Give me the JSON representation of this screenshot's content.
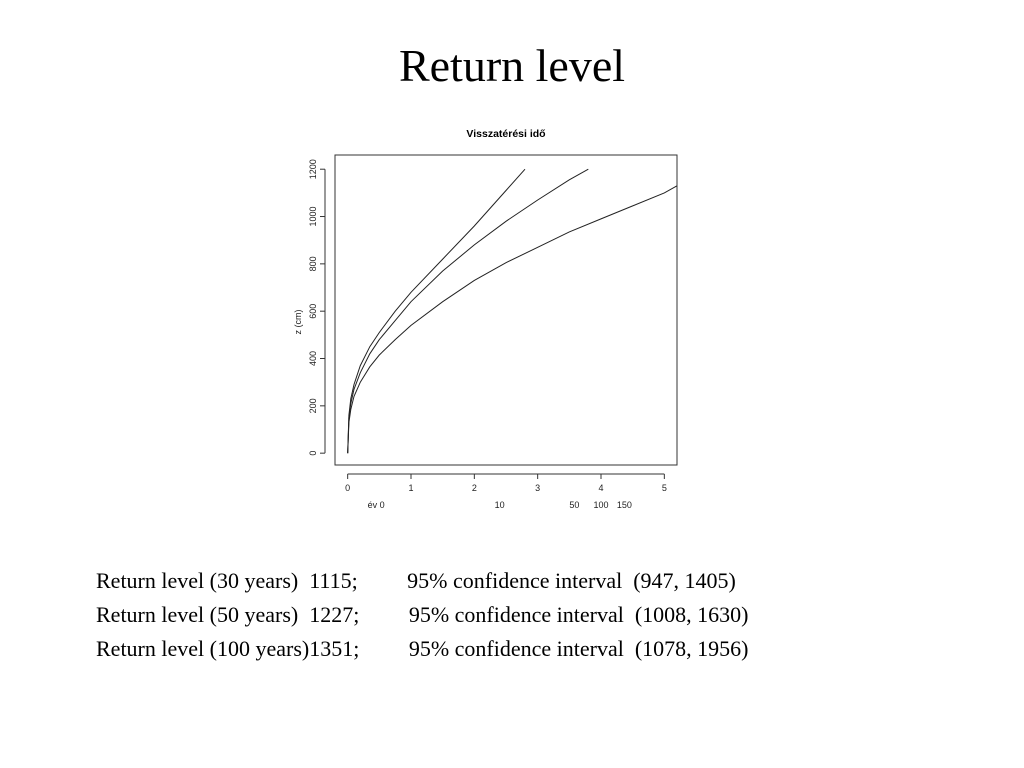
{
  "slide": {
    "title": "Return level"
  },
  "stats": [
    {
      "text": "Return level (30 years)  1115;         95% confidence interval  (947, 1405)"
    },
    {
      "text": "Return level (50 years)  1227;         95% confidence interval  (1008, 1630)"
    },
    {
      "text": "Return level (100 years)1351;         95% confidence interval  (1078, 1956)"
    }
  ],
  "chart_data": {
    "type": "line",
    "title": "Visszatérési idő",
    "ylabel": "z (cm)",
    "xlim": [
      -0.2,
      5.2
    ],
    "ylim": [
      -50,
      1260
    ],
    "xticks": [
      0,
      1,
      2,
      3,
      4,
      5
    ],
    "yticks": [
      0,
      200,
      400,
      600,
      800,
      1000,
      1200
    ],
    "secondary_axis_labels": [
      {
        "text": "év 0",
        "at": 0.45
      },
      {
        "text": "10",
        "at": 2.4
      },
      {
        "text": "50",
        "at": 3.58
      },
      {
        "text": "100",
        "at": 4.0
      },
      {
        "text": "150",
        "at": 4.37
      }
    ],
    "series": [
      {
        "values_x": [
          0,
          0.02,
          0.05,
          0.1,
          0.2,
          0.35,
          0.5,
          0.75,
          1.0,
          1.5,
          2.0,
          2.5,
          3.0,
          3.5,
          4.0,
          4.5,
          5.0,
          5.2
        ],
        "values_y": [
          0,
          130,
          185,
          240,
          300,
          365,
          415,
          480,
          540,
          640,
          730,
          805,
          870,
          935,
          990,
          1045,
          1100,
          1130
        ]
      },
      {
        "values_x": [
          0,
          0.02,
          0.05,
          0.1,
          0.2,
          0.35,
          0.5,
          0.75,
          1.0,
          1.5,
          2.0,
          2.5,
          3.0,
          3.5,
          3.8
        ],
        "values_y": [
          0,
          150,
          210,
          270,
          340,
          420,
          480,
          560,
          640,
          770,
          880,
          980,
          1070,
          1155,
          1200
        ]
      },
      {
        "values_x": [
          0,
          0.02,
          0.05,
          0.1,
          0.2,
          0.35,
          0.5,
          0.75,
          1.0,
          1.5,
          2.0,
          2.5,
          2.8
        ],
        "values_y": [
          0,
          160,
          230,
          290,
          370,
          450,
          510,
          600,
          680,
          820,
          960,
          1110,
          1200
        ]
      }
    ]
  }
}
